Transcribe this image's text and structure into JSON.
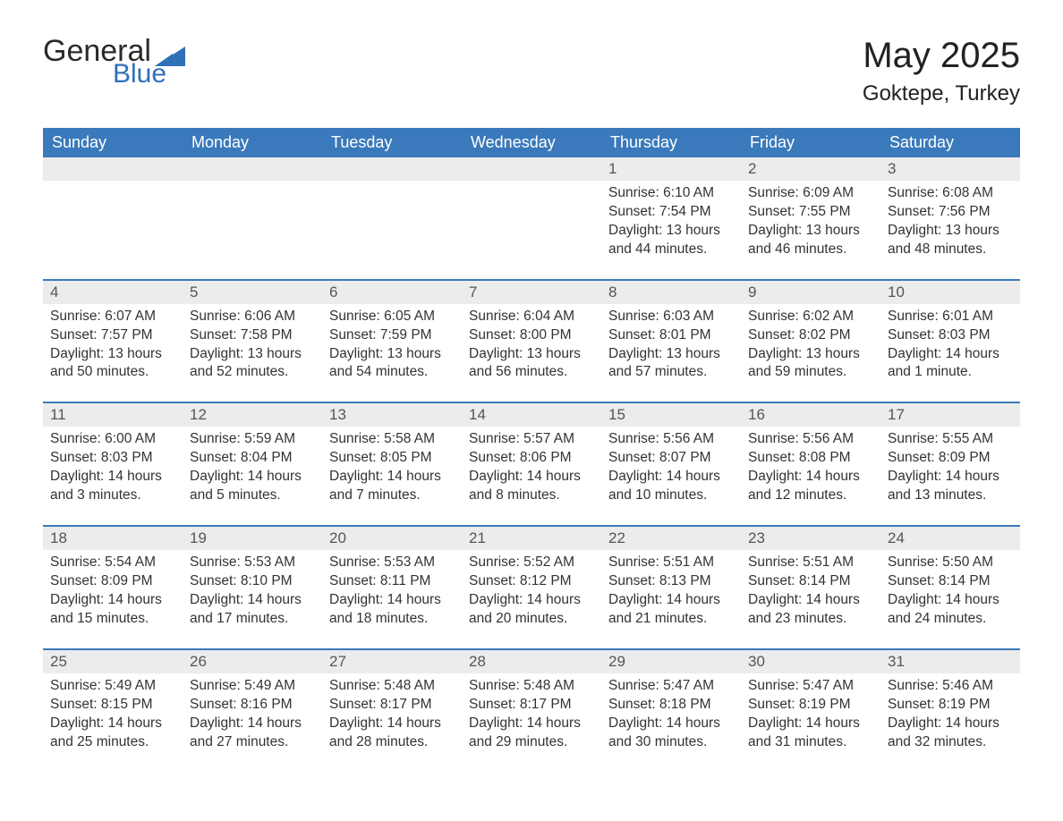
{
  "brand": {
    "word1": "General",
    "word2": "Blue",
    "word1_color": "#2a2a2a",
    "word2_color": "#2f70b8",
    "icon_color": "#2f70b8"
  },
  "header": {
    "title": "May 2025",
    "location": "Goktepe, Turkey"
  },
  "colors": {
    "header_bg": "#3a79bb",
    "header_text": "#ffffff",
    "daynum_bg": "#ececec",
    "daynum_border": "#3a79bb",
    "body_text": "#333333",
    "page_bg": "#ffffff"
  },
  "weekdays": [
    "Sunday",
    "Monday",
    "Tuesday",
    "Wednesday",
    "Thursday",
    "Friday",
    "Saturday"
  ],
  "weeks": [
    [
      null,
      null,
      null,
      null,
      {
        "n": "1",
        "sunrise": "6:10 AM",
        "sunset": "7:54 PM",
        "daylight": "13 hours and 44 minutes."
      },
      {
        "n": "2",
        "sunrise": "6:09 AM",
        "sunset": "7:55 PM",
        "daylight": "13 hours and 46 minutes."
      },
      {
        "n": "3",
        "sunrise": "6:08 AM",
        "sunset": "7:56 PM",
        "daylight": "13 hours and 48 minutes."
      }
    ],
    [
      {
        "n": "4",
        "sunrise": "6:07 AM",
        "sunset": "7:57 PM",
        "daylight": "13 hours and 50 minutes."
      },
      {
        "n": "5",
        "sunrise": "6:06 AM",
        "sunset": "7:58 PM",
        "daylight": "13 hours and 52 minutes."
      },
      {
        "n": "6",
        "sunrise": "6:05 AM",
        "sunset": "7:59 PM",
        "daylight": "13 hours and 54 minutes."
      },
      {
        "n": "7",
        "sunrise": "6:04 AM",
        "sunset": "8:00 PM",
        "daylight": "13 hours and 56 minutes."
      },
      {
        "n": "8",
        "sunrise": "6:03 AM",
        "sunset": "8:01 PM",
        "daylight": "13 hours and 57 minutes."
      },
      {
        "n": "9",
        "sunrise": "6:02 AM",
        "sunset": "8:02 PM",
        "daylight": "13 hours and 59 minutes."
      },
      {
        "n": "10",
        "sunrise": "6:01 AM",
        "sunset": "8:03 PM",
        "daylight": "14 hours and 1 minute."
      }
    ],
    [
      {
        "n": "11",
        "sunrise": "6:00 AM",
        "sunset": "8:03 PM",
        "daylight": "14 hours and 3 minutes."
      },
      {
        "n": "12",
        "sunrise": "5:59 AM",
        "sunset": "8:04 PM",
        "daylight": "14 hours and 5 minutes."
      },
      {
        "n": "13",
        "sunrise": "5:58 AM",
        "sunset": "8:05 PM",
        "daylight": "14 hours and 7 minutes."
      },
      {
        "n": "14",
        "sunrise": "5:57 AM",
        "sunset": "8:06 PM",
        "daylight": "14 hours and 8 minutes."
      },
      {
        "n": "15",
        "sunrise": "5:56 AM",
        "sunset": "8:07 PM",
        "daylight": "14 hours and 10 minutes."
      },
      {
        "n": "16",
        "sunrise": "5:56 AM",
        "sunset": "8:08 PM",
        "daylight": "14 hours and 12 minutes."
      },
      {
        "n": "17",
        "sunrise": "5:55 AM",
        "sunset": "8:09 PM",
        "daylight": "14 hours and 13 minutes."
      }
    ],
    [
      {
        "n": "18",
        "sunrise": "5:54 AM",
        "sunset": "8:09 PM",
        "daylight": "14 hours and 15 minutes."
      },
      {
        "n": "19",
        "sunrise": "5:53 AM",
        "sunset": "8:10 PM",
        "daylight": "14 hours and 17 minutes."
      },
      {
        "n": "20",
        "sunrise": "5:53 AM",
        "sunset": "8:11 PM",
        "daylight": "14 hours and 18 minutes."
      },
      {
        "n": "21",
        "sunrise": "5:52 AM",
        "sunset": "8:12 PM",
        "daylight": "14 hours and 20 minutes."
      },
      {
        "n": "22",
        "sunrise": "5:51 AM",
        "sunset": "8:13 PM",
        "daylight": "14 hours and 21 minutes."
      },
      {
        "n": "23",
        "sunrise": "5:51 AM",
        "sunset": "8:14 PM",
        "daylight": "14 hours and 23 minutes."
      },
      {
        "n": "24",
        "sunrise": "5:50 AM",
        "sunset": "8:14 PM",
        "daylight": "14 hours and 24 minutes."
      }
    ],
    [
      {
        "n": "25",
        "sunrise": "5:49 AM",
        "sunset": "8:15 PM",
        "daylight": "14 hours and 25 minutes."
      },
      {
        "n": "26",
        "sunrise": "5:49 AM",
        "sunset": "8:16 PM",
        "daylight": "14 hours and 27 minutes."
      },
      {
        "n": "27",
        "sunrise": "5:48 AM",
        "sunset": "8:17 PM",
        "daylight": "14 hours and 28 minutes."
      },
      {
        "n": "28",
        "sunrise": "5:48 AM",
        "sunset": "8:17 PM",
        "daylight": "14 hours and 29 minutes."
      },
      {
        "n": "29",
        "sunrise": "5:47 AM",
        "sunset": "8:18 PM",
        "daylight": "14 hours and 30 minutes."
      },
      {
        "n": "30",
        "sunrise": "5:47 AM",
        "sunset": "8:19 PM",
        "daylight": "14 hours and 31 minutes."
      },
      {
        "n": "31",
        "sunrise": "5:46 AM",
        "sunset": "8:19 PM",
        "daylight": "14 hours and 32 minutes."
      }
    ]
  ],
  "labels": {
    "sunrise": "Sunrise:",
    "sunset": "Sunset:",
    "daylight": "Daylight:"
  }
}
